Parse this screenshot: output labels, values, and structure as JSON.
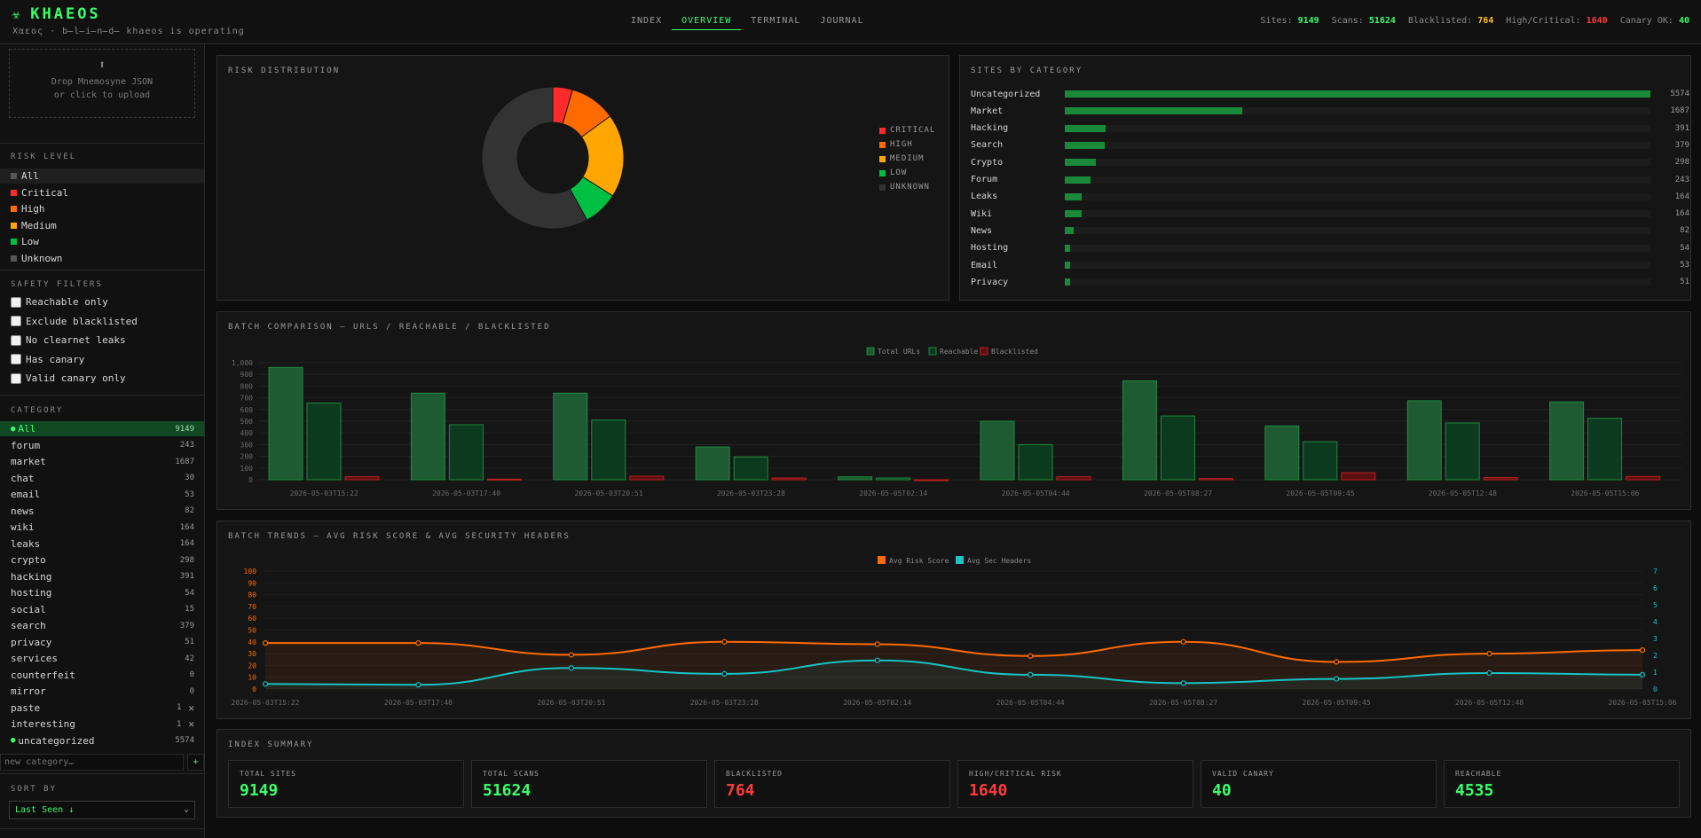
{
  "app": {
    "brand": "KHAEOS",
    "brand_icon": "virus-icon",
    "tagline": "Χαεος · b̶l̶i̶n̶d̶ khaeos is operating"
  },
  "nav": [
    "INDEX",
    "OVERVIEW",
    "TERMINAL",
    "JOURNAL"
  ],
  "nav_active": 1,
  "stats": [
    {
      "label": "Sites:",
      "value": "9149",
      "color": "#39ff6a"
    },
    {
      "label": "Scans:",
      "value": "51624",
      "color": "#39ff6a"
    },
    {
      "label": "Blacklisted:",
      "value": "764",
      "color": "#ffc21a"
    },
    {
      "label": "High/Critical:",
      "value": "1640",
      "color": "#ff3b3b"
    },
    {
      "label": "Canary OK:",
      "value": "40",
      "color": "#39ff6a"
    }
  ],
  "sidebar": {
    "drop_line1": "Drop Mnemosyne JSON",
    "drop_line2": "or click to upload",
    "risk_title": "RISK LEVEL",
    "risk_levels": [
      {
        "label": "All",
        "color": "#555555"
      },
      {
        "label": "Critical",
        "color": "#ff2b2b"
      },
      {
        "label": "High",
        "color": "#ff6a00"
      },
      {
        "label": "Medium",
        "color": "#ffa700"
      },
      {
        "label": "Low",
        "color": "#00c043"
      },
      {
        "label": "Unknown",
        "color": "#555555"
      }
    ],
    "safety_title": "SAFETY FILTERS",
    "safety_filters": [
      "Reachable only",
      "Exclude blacklisted",
      "No clearnet leaks",
      "Has canary",
      "Valid canary only"
    ],
    "category_title": "CATEGORY",
    "categories": [
      {
        "label": "All",
        "count": "9149"
      },
      {
        "label": "forum",
        "count": "243"
      },
      {
        "label": "market",
        "count": "1687"
      },
      {
        "label": "chat",
        "count": "30"
      },
      {
        "label": "email",
        "count": "53"
      },
      {
        "label": "news",
        "count": "82"
      },
      {
        "label": "wiki",
        "count": "164"
      },
      {
        "label": "leaks",
        "count": "164"
      },
      {
        "label": "crypto",
        "count": "298"
      },
      {
        "label": "hacking",
        "count": "391"
      },
      {
        "label": "hosting",
        "count": "54"
      },
      {
        "label": "social",
        "count": "15"
      },
      {
        "label": "search",
        "count": "379"
      },
      {
        "label": "privacy",
        "count": "51"
      },
      {
        "label": "services",
        "count": "42"
      },
      {
        "label": "counterfeit",
        "count": "0"
      },
      {
        "label": "mirror",
        "count": "0"
      },
      {
        "label": "paste",
        "count": "1"
      },
      {
        "label": "interesting",
        "count": "1"
      },
      {
        "label": "uncategorized",
        "count": "5574"
      }
    ],
    "new_category_placeholder": "new category…",
    "add_label": "+",
    "sort_title": "SORT BY",
    "sort_value": "Last Seen ↓"
  },
  "risk_panel": {
    "title": "RISK DISTRIBUTION",
    "legend": [
      {
        "label": "CRITICAL",
        "color": "#ff2b2b"
      },
      {
        "label": "HIGH",
        "color": "#ff6a00"
      },
      {
        "label": "MEDIUM",
        "color": "#ffa700"
      },
      {
        "label": "LOW",
        "color": "#00c043"
      },
      {
        "label": "UNKNOWN",
        "color": "#333333"
      }
    ]
  },
  "sites_panel": {
    "title": "SITES BY CATEGORY",
    "rows": [
      {
        "label": "Uncategorized",
        "value": 5574
      },
      {
        "label": "Market",
        "value": 1687
      },
      {
        "label": "Hacking",
        "value": 391
      },
      {
        "label": "Search",
        "value": 379
      },
      {
        "label": "Crypto",
        "value": 298
      },
      {
        "label": "Forum",
        "value": 243
      },
      {
        "label": "Leaks",
        "value": 164
      },
      {
        "label": "Wiki",
        "value": 164
      },
      {
        "label": "News",
        "value": 82
      },
      {
        "label": "Hosting",
        "value": 54
      },
      {
        "label": "Email",
        "value": 53
      },
      {
        "label": "Privacy",
        "value": 51
      }
    ],
    "max": 5574
  },
  "batch_panel": {
    "title": "BATCH COMPARISON — URLS / REACHABLE / BLACKLISTED"
  },
  "trend_panel": {
    "title": "BATCH TRENDS — AVG RISK SCORE & AVG SECURITY HEADERS"
  },
  "summary": {
    "title": "INDEX SUMMARY",
    "cards": [
      {
        "label": "TOTAL SITES",
        "value": "9149",
        "color": "#39ff6a"
      },
      {
        "label": "TOTAL SCANS",
        "value": "51624",
        "color": "#39ff6a"
      },
      {
        "label": "BLACKLISTED",
        "value": "764",
        "color": "#ff3b3b"
      },
      {
        "label": "HIGH/CRITICAL RISK",
        "value": "1640",
        "color": "#ff3b3b"
      },
      {
        "label": "VALID CANARY",
        "value": "40",
        "color": "#39ff6a"
      },
      {
        "label": "REACHABLE",
        "value": "4535",
        "color": "#39ff6a"
      }
    ]
  },
  "chart_data": [
    {
      "type": "pie",
      "title": "RISK DISTRIBUTION",
      "donut": true,
      "slices": [
        {
          "name": "CRITICAL",
          "value": 4.5,
          "color": "#ff2b2b"
        },
        {
          "name": "HIGH",
          "value": 10.5,
          "color": "#ff6a00"
        },
        {
          "name": "MEDIUM",
          "value": 19,
          "color": "#ffa700"
        },
        {
          "name": "LOW",
          "value": 8,
          "color": "#00c043"
        },
        {
          "name": "UNKNOWN",
          "value": 58,
          "color": "#333333"
        }
      ],
      "legend": "right"
    },
    {
      "type": "bar",
      "title": "BATCH COMPARISON — URLS / REACHABLE / BLACKLISTED",
      "categories": [
        "2026-05-03T15:22",
        "2026-05-03T17:40",
        "2026-05-03T20:51",
        "2026-05-03T23:28",
        "2026-05-05T02:14",
        "2026-05-05T04:44",
        "2026-05-05T08:27",
        "2026-05-05T09:45",
        "2026-05-05T12:48",
        "2026-05-05T15:06"
      ],
      "series": [
        {
          "name": "Total URLs",
          "values": [
            960,
            740,
            740,
            280,
            25,
            500,
            845,
            460,
            675,
            665
          ],
          "color": "#1e5a32"
        },
        {
          "name": "Reachable",
          "values": [
            655,
            470,
            510,
            195,
            15,
            300,
            545,
            325,
            485,
            525
          ],
          "color": "#0b3a1e"
        },
        {
          "name": "Blacklisted",
          "values": [
            25,
            5,
            30,
            15,
            0,
            25,
            10,
            60,
            18,
            28
          ],
          "color": "#5a1010"
        }
      ],
      "ylim": [
        0,
        1000
      ],
      "yticks": [
        "1,000",
        "900",
        "800",
        "700",
        "600",
        "500",
        "400",
        "300",
        "200",
        "100",
        "0"
      ],
      "legend": "top-center",
      "grid": true
    },
    {
      "type": "line",
      "title": "BATCH TRENDS — AVG RISK SCORE & AVG SECURITY HEADERS",
      "categories": [
        "2026-05-03T15:22",
        "2026-05-03T17:40",
        "2026-05-03T20:51",
        "2026-05-03T23:28",
        "2026-05-05T02:14",
        "2026-05-05T04:44",
        "2026-05-05T08:27",
        "2026-05-05T09:45",
        "2026-05-05T12:48",
        "2026-05-05T15:06"
      ],
      "series": [
        {
          "name": "Avg Risk Score",
          "axis": "left",
          "values": [
            39,
            39,
            29,
            40,
            38,
            28,
            40,
            23,
            30,
            33
          ],
          "color": "#ff6a00"
        },
        {
          "name": "Avg Sec Headers",
          "axis": "right",
          "values": [
            0.3,
            0.25,
            1.25,
            0.9,
            1.7,
            0.85,
            0.35,
            0.6,
            0.95,
            0.85
          ],
          "color": "#17c3c3"
        }
      ],
      "ylim_left": [
        0,
        100
      ],
      "ylim_right": [
        0,
        7
      ],
      "yticks_left": [
        "100",
        "90",
        "80",
        "70",
        "60",
        "50",
        "40",
        "30",
        "20",
        "10",
        "0"
      ],
      "yticks_right": [
        "7",
        "6",
        "5",
        "4",
        "3",
        "2",
        "1",
        "0"
      ],
      "legend": "top-center",
      "grid": true
    }
  ]
}
